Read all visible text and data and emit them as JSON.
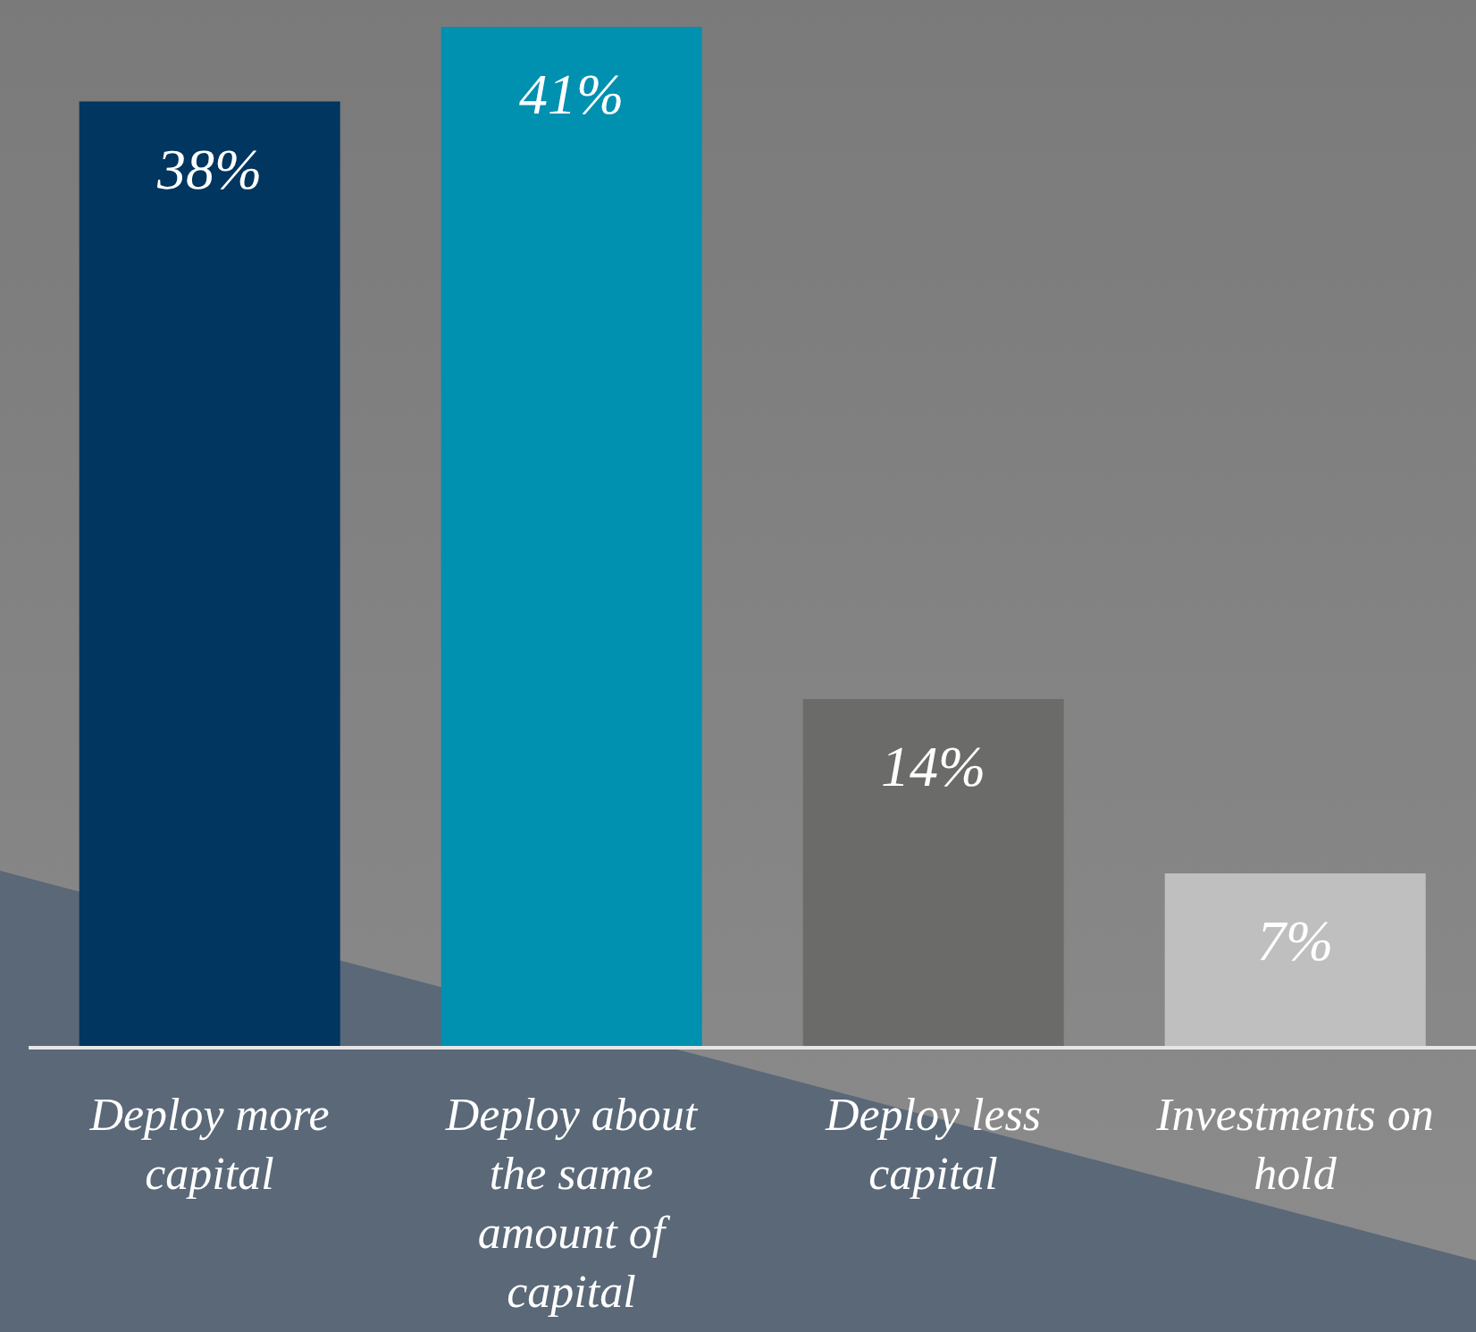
{
  "chart_data": {
    "type": "bar",
    "categories": [
      "Deploy more capital",
      "Deploy about the same amount of capital",
      "Deploy less capital",
      "Investments on hold"
    ],
    "values": [
      38,
      41,
      14,
      7
    ],
    "colors": [
      "#003660",
      "#0090b0",
      "#6b6c6a",
      "#bfbfbf"
    ],
    "value_labels": [
      "38%",
      "41%",
      "14%",
      "7%"
    ],
    "grid": false,
    "legend": false
  }
}
